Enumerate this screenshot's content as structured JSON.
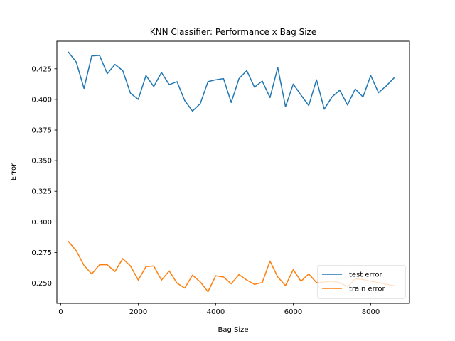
{
  "chart_data": {
    "type": "line",
    "title": "KNN Classifier: Performance x Bag Size",
    "xlabel": "Bag Size",
    "ylabel": "Error",
    "xlim": [
      -100,
      9000
    ],
    "ylim": [
      0.2335,
      0.4475
    ],
    "x_ticks": [
      0,
      2000,
      4000,
      6000,
      8000
    ],
    "x_tick_labels": [
      "0",
      "2000",
      "4000",
      "6000",
      "8000"
    ],
    "y_ticks": [
      0.25,
      0.275,
      0.3,
      0.325,
      0.35,
      0.375,
      0.4,
      0.425
    ],
    "y_tick_labels": [
      "0.250",
      "0.275",
      "0.300",
      "0.325",
      "0.350",
      "0.375",
      "0.400",
      "0.425"
    ],
    "grid": false,
    "legend_position": "lower-right",
    "x": [
      200,
      400,
      600,
      800,
      1000,
      1200,
      1400,
      1600,
      1800,
      2000,
      2200,
      2400,
      2600,
      2800,
      3000,
      3200,
      3400,
      3600,
      3800,
      4000,
      4200,
      4400,
      4600,
      4800,
      5000,
      5200,
      5400,
      5600,
      5800,
      6000,
      6200,
      6400,
      6600,
      6800,
      7000,
      7200,
      7400,
      7600,
      7800,
      8000,
      8200,
      8400,
      8600
    ],
    "series": [
      {
        "name": "test error",
        "color": "#1f77b4",
        "values": [
          0.4385,
          0.4305,
          0.409,
          0.4355,
          0.436,
          0.421,
          0.4285,
          0.4235,
          0.405,
          0.4,
          0.4195,
          0.4105,
          0.422,
          0.412,
          0.4145,
          0.399,
          0.3905,
          0.3965,
          0.4145,
          0.416,
          0.417,
          0.3975,
          0.417,
          0.4235,
          0.41,
          0.415,
          0.4015,
          0.426,
          0.394,
          0.4125,
          0.4035,
          0.395,
          0.416,
          0.392,
          0.402,
          0.4075,
          0.3955,
          0.4085,
          0.402,
          0.4195,
          0.4055,
          0.411,
          0.4175
        ]
      },
      {
        "name": "train error",
        "color": "#ff7f0e",
        "values": [
          0.284,
          0.2765,
          0.2645,
          0.2575,
          0.265,
          0.265,
          0.2595,
          0.27,
          0.264,
          0.2525,
          0.2635,
          0.264,
          0.2525,
          0.26,
          0.25,
          0.246,
          0.2565,
          0.251,
          0.243,
          0.256,
          0.255,
          0.2495,
          0.257,
          0.2525,
          0.249,
          0.2505,
          0.268,
          0.255,
          0.248,
          0.261,
          0.2515,
          0.2575,
          0.2505,
          0.251,
          0.2515,
          0.2505,
          0.247,
          0.2535,
          0.253,
          0.2515,
          0.2505,
          0.249,
          0.248
        ]
      }
    ]
  }
}
